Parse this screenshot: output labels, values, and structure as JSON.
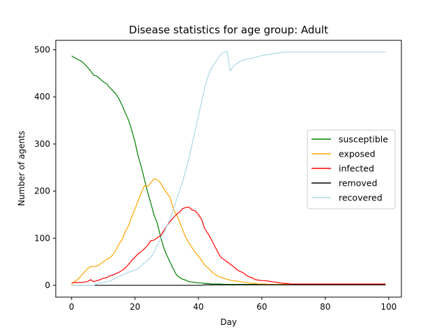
{
  "chart_data": {
    "type": "line",
    "title": "Disease statistics for age group: Adult",
    "xlabel": "Day",
    "ylabel": "Number of agents",
    "xlim": [
      -5,
      104
    ],
    "ylim": [
      -25,
      520
    ],
    "xticks": [
      0,
      20,
      40,
      60,
      80,
      100
    ],
    "yticks": [
      0,
      100,
      200,
      300,
      400,
      500
    ],
    "legend_position": "center-right",
    "grid": false,
    "x": [
      0,
      1,
      2,
      3,
      4,
      5,
      6,
      7,
      8,
      9,
      10,
      11,
      12,
      13,
      14,
      15,
      16,
      17,
      18,
      19,
      20,
      21,
      22,
      23,
      24,
      25,
      26,
      27,
      28,
      29,
      30,
      31,
      32,
      33,
      34,
      35,
      36,
      37,
      38,
      39,
      40,
      41,
      42,
      43,
      44,
      45,
      46,
      47,
      48,
      49,
      50,
      51,
      52,
      53,
      54,
      55,
      56,
      57,
      58,
      59,
      60,
      61,
      62,
      63,
      64,
      65,
      66,
      67,
      68,
      69,
      70,
      71,
      72,
      73,
      74,
      75,
      76,
      77,
      78,
      79,
      80,
      81,
      82,
      83,
      84,
      85,
      86,
      87,
      88,
      89,
      90,
      91,
      92,
      93,
      94,
      95,
      96,
      97,
      98,
      99
    ],
    "series": [
      {
        "name": "susceptible",
        "color": "#008000",
        "values": [
          487,
          483,
          479,
          476,
          470,
          463,
          455,
          446,
          444,
          438,
          432,
          428,
          420,
          413,
          406,
          395,
          381,
          365,
          350,
          328,
          304,
          274,
          251,
          224,
          197,
          174,
          149,
          132,
          104,
          81,
          64,
          50,
          36,
          23,
          17,
          13,
          11,
          8,
          7,
          6,
          5,
          5,
          4,
          4,
          3,
          3,
          3,
          3,
          2,
          2,
          2,
          2,
          2,
          2,
          2,
          2,
          2,
          2,
          2,
          2,
          2,
          2,
          2,
          2,
          2,
          2,
          2,
          2,
          2,
          2,
          2,
          2,
          2,
          2,
          2,
          2,
          2,
          2,
          2,
          2,
          2,
          2,
          2,
          2,
          2,
          2,
          2,
          2,
          2,
          2,
          2,
          2,
          2,
          2,
          2,
          2,
          2,
          2,
          2,
          2
        ]
      },
      {
        "name": "exposed",
        "color": "#ffa500",
        "values": [
          3,
          8,
          13,
          20,
          28,
          35,
          40,
          40,
          41,
          45,
          50,
          55,
          58,
          65,
          75,
          88,
          98,
          115,
          127,
          146,
          162,
          180,
          196,
          212,
          210,
          218,
          226,
          224,
          218,
          206,
          196,
          187,
          164,
          150,
          136,
          118,
          102,
          90,
          80,
          70,
          62,
          53,
          43,
          37,
          30,
          24,
          20,
          17,
          15,
          13,
          11,
          10,
          9,
          8,
          7,
          6,
          5,
          4,
          4,
          3,
          3,
          3,
          2,
          2,
          2,
          2,
          2,
          2,
          2,
          2,
          1,
          1,
          1,
          1,
          1,
          1,
          1,
          1,
          1,
          1,
          1,
          1,
          1,
          1,
          1,
          1,
          1,
          1,
          1,
          1,
          1,
          1,
          1,
          1,
          1,
          1,
          1,
          1,
          1,
          1
        ]
      },
      {
        "name": "infected",
        "color": "#ff0000",
        "values": [
          5,
          6,
          6,
          6,
          7,
          8,
          12,
          8,
          10,
          12,
          15,
          16,
          20,
          22,
          25,
          28,
          32,
          37,
          45,
          53,
          60,
          67,
          72,
          78,
          85,
          95,
          96,
          101,
          105,
          115,
          126,
          135,
          143,
          150,
          155,
          163,
          165,
          166,
          160,
          158,
          150,
          140,
          120,
          110,
          98,
          85,
          72,
          60,
          55,
          50,
          45,
          40,
          34,
          30,
          27,
          22,
          18,
          16,
          12,
          11,
          10,
          10,
          9,
          8,
          7,
          6,
          5,
          4,
          4,
          3,
          3,
          3,
          3,
          3,
          3,
          3,
          3,
          3,
          3,
          3,
          3,
          3,
          3,
          3,
          3,
          3,
          3,
          3,
          3,
          3,
          3,
          3,
          3,
          3,
          3,
          3,
          3,
          3,
          3,
          3
        ]
      },
      {
        "name": "removed",
        "color": "#000000",
        "values": [
          0,
          0,
          0,
          0,
          0,
          0,
          0,
          0,
          0,
          0,
          0,
          0,
          0,
          0,
          0,
          0,
          0,
          0,
          0,
          0,
          0,
          0,
          0,
          0,
          0,
          0,
          0,
          0,
          0,
          0,
          0,
          0,
          0,
          0,
          0,
          0,
          0,
          0,
          0,
          0,
          0,
          0,
          1,
          1,
          1,
          1,
          1,
          1,
          1,
          1,
          1,
          1,
          1,
          1,
          1,
          1,
          1,
          1,
          1,
          1,
          1,
          1,
          1,
          1,
          1,
          1,
          1,
          1,
          1,
          1,
          1,
          1,
          1,
          1,
          1,
          1,
          1,
          1,
          1,
          1,
          1,
          1,
          1,
          1,
          1,
          1,
          1,
          1,
          1,
          1,
          1,
          1,
          1,
          1,
          1,
          1,
          1,
          1,
          1,
          1
        ]
      },
      {
        "name": "recovered",
        "color": "#add8e6",
        "values": [
          0,
          0,
          0,
          0,
          0,
          0,
          0,
          0,
          3,
          5,
          6,
          7,
          9,
          12,
          16,
          19,
          22,
          25,
          28,
          30,
          32,
          36,
          42,
          48,
          54,
          60,
          70,
          85,
          98,
          110,
          125,
          140,
          160,
          180,
          200,
          220,
          245,
          270,
          300,
          330,
          360,
          390,
          420,
          443,
          460,
          470,
          480,
          490,
          495,
          497,
          455,
          465,
          470,
          475,
          478,
          480,
          481,
          482,
          484,
          486,
          488,
          489,
          490,
          491,
          492,
          493,
          494,
          495,
          495,
          495,
          495,
          495,
          495,
          495,
          495,
          495,
          495,
          495,
          495,
          495,
          495,
          495,
          495,
          495,
          495,
          495,
          495,
          495,
          495,
          495,
          495,
          495,
          495,
          495,
          495,
          495,
          495,
          495,
          495,
          495
        ]
      }
    ]
  }
}
